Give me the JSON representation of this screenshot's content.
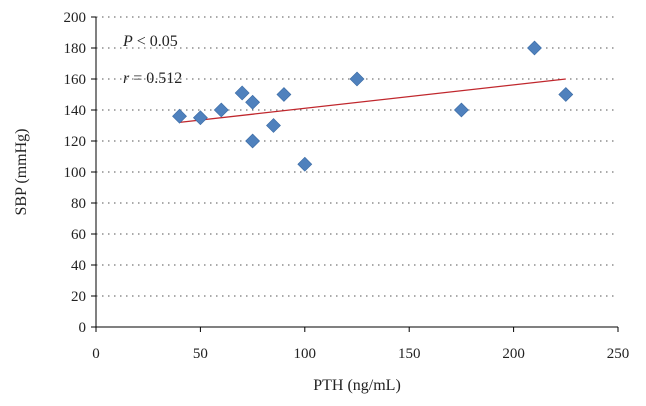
{
  "chart_data": {
    "type": "scatter",
    "xlabel": "PTH (ng/mL)",
    "ylabel": "SBP (mmHg)",
    "xlim": [
      0,
      250
    ],
    "ylim": [
      0,
      200
    ],
    "xticks": [
      0,
      50,
      100,
      150,
      200,
      250
    ],
    "yticks": [
      0,
      20,
      40,
      60,
      80,
      100,
      120,
      140,
      160,
      180,
      200
    ],
    "grid": "horizontal-dotted",
    "legend": "none",
    "annotations": {
      "p_symbol": "P",
      "p_rest": " < 0.05",
      "r_symbol": "r",
      "r_rest": " = 0.512"
    },
    "points": [
      {
        "x": 40,
        "y": 136
      },
      {
        "x": 50,
        "y": 135
      },
      {
        "x": 60,
        "y": 140
      },
      {
        "x": 70,
        "y": 151
      },
      {
        "x": 75,
        "y": 145
      },
      {
        "x": 75,
        "y": 120
      },
      {
        "x": 85,
        "y": 130
      },
      {
        "x": 90,
        "y": 150
      },
      {
        "x": 100,
        "y": 105
      },
      {
        "x": 125,
        "y": 160
      },
      {
        "x": 175,
        "y": 140
      },
      {
        "x": 210,
        "y": 180
      },
      {
        "x": 225,
        "y": 150
      }
    ],
    "trendline": {
      "x": [
        40,
        225
      ],
      "y": [
        132,
        160
      ]
    },
    "colors": {
      "marker": "#4f81bd",
      "trendline": "#c0272d",
      "axis": "#000000",
      "grid": "#555555"
    }
  }
}
